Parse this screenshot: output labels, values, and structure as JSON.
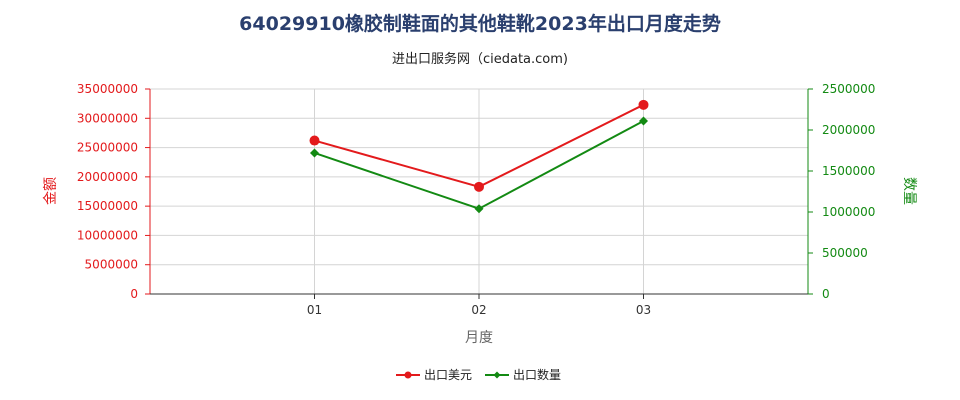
{
  "title": "64029910橡胶制鞋面的其他鞋靴2023年出口月度走势",
  "subtitle": "进出口服务网（ciedata.com)",
  "chart_data": {
    "type": "line",
    "categories": [
      "01",
      "02",
      "03"
    ],
    "xlabel": "月度",
    "ylabel_left": "金额",
    "ylabel_right": "数量",
    "ylim_left": [
      0,
      35000000
    ],
    "ylim_right": [
      0,
      2500000
    ],
    "yticks_left": [
      "0",
      "5000000",
      "10000000",
      "15000000",
      "20000000",
      "25000000",
      "30000000",
      "35000000"
    ],
    "yticks_right": [
      "0",
      "500000",
      "1000000",
      "1500000",
      "2000000",
      "2500000"
    ],
    "grid": true,
    "legend_position": "bottom",
    "series": [
      {
        "name": "出口美元",
        "axis": "left",
        "color": "#e31a1c",
        "values": [
          26200000,
          18300000,
          32300000
        ]
      },
      {
        "name": "出口数量",
        "axis": "right",
        "color": "#138a13",
        "values": [
          1720000,
          1040000,
          2110000
        ]
      }
    ]
  }
}
